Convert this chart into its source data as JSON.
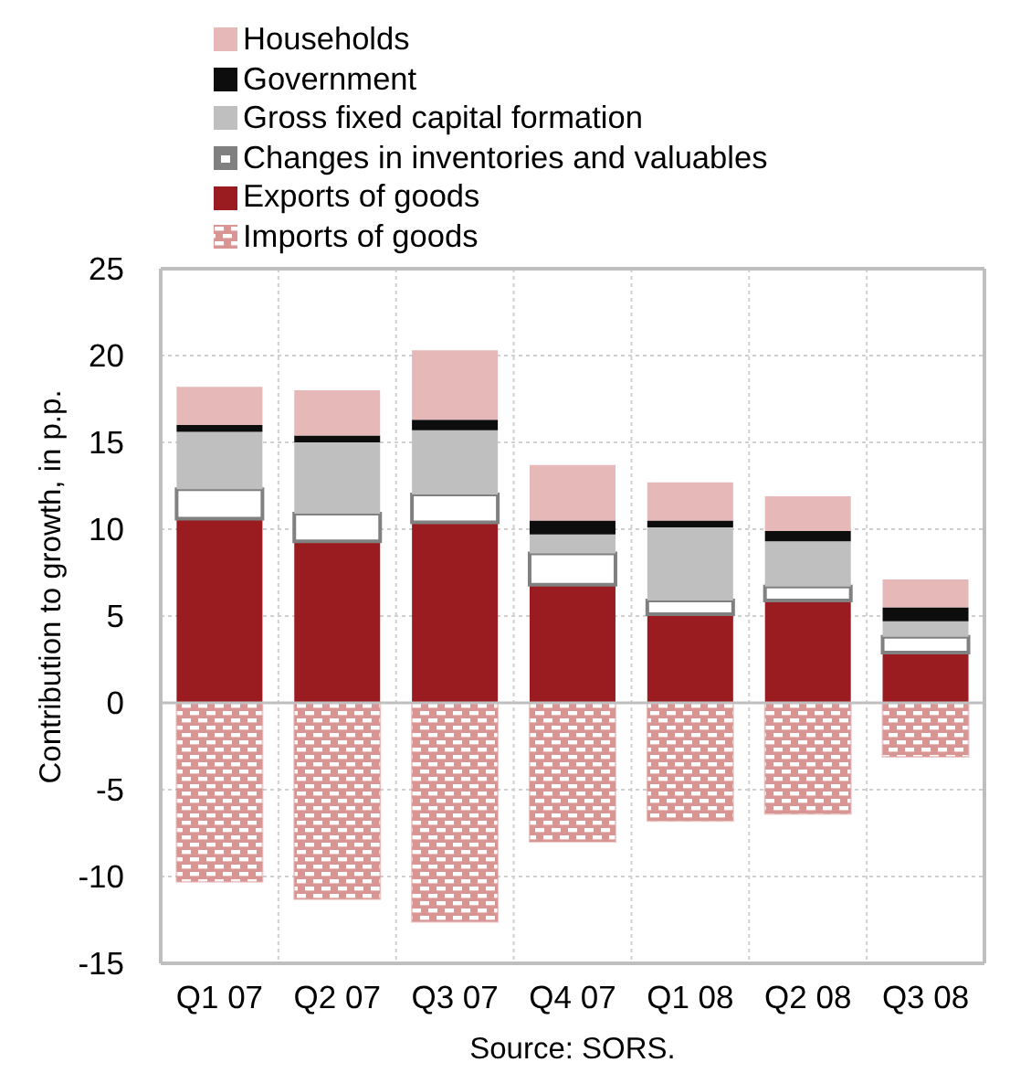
{
  "chart_data": {
    "type": "bar",
    "stacked": true,
    "ylabel": "Contribution to growth, in p.p.",
    "annotations": [
      "Source: SORS."
    ],
    "categories": [
      "Q1 07",
      "Q2 07",
      "Q3 07",
      "Q4 07",
      "Q1 08",
      "Q2 08",
      "Q3 08"
    ],
    "series": [
      {
        "name": "Exports of goods",
        "color": "#9b1c20",
        "values": [
          10.6,
          9.3,
          10.4,
          6.8,
          5.1,
          5.9,
          2.9
        ]
      },
      {
        "name": "Changes in inventories and valuables",
        "color": "#808080",
        "values": [
          1.7,
          1.6,
          1.6,
          1.8,
          0.8,
          0.8,
          0.9
        ]
      },
      {
        "name": "Gross fixed capital formation",
        "color": "#bfbfbf",
        "values": [
          3.3,
          4.1,
          3.7,
          1.1,
          4.2,
          2.6,
          0.9
        ]
      },
      {
        "name": "Government",
        "color": "#0d0d0d",
        "values": [
          0.4,
          0.4,
          0.6,
          0.8,
          0.4,
          0.6,
          0.8
        ]
      },
      {
        "name": "Households",
        "color": "#e6b9b8",
        "values": [
          2.2,
          2.6,
          4.0,
          3.2,
          2.2,
          2.0,
          1.6
        ]
      },
      {
        "name": "Imports of goods",
        "color": "#d99594",
        "values": [
          -10.3,
          -11.3,
          -12.6,
          -8.0,
          -6.8,
          -6.4,
          -3.1
        ]
      }
    ],
    "ylim": [
      -15,
      25
    ],
    "yticks": [
      -15,
      -10,
      -5,
      0,
      5,
      10,
      15,
      20,
      25
    ],
    "grid": true,
    "legend": "top"
  }
}
